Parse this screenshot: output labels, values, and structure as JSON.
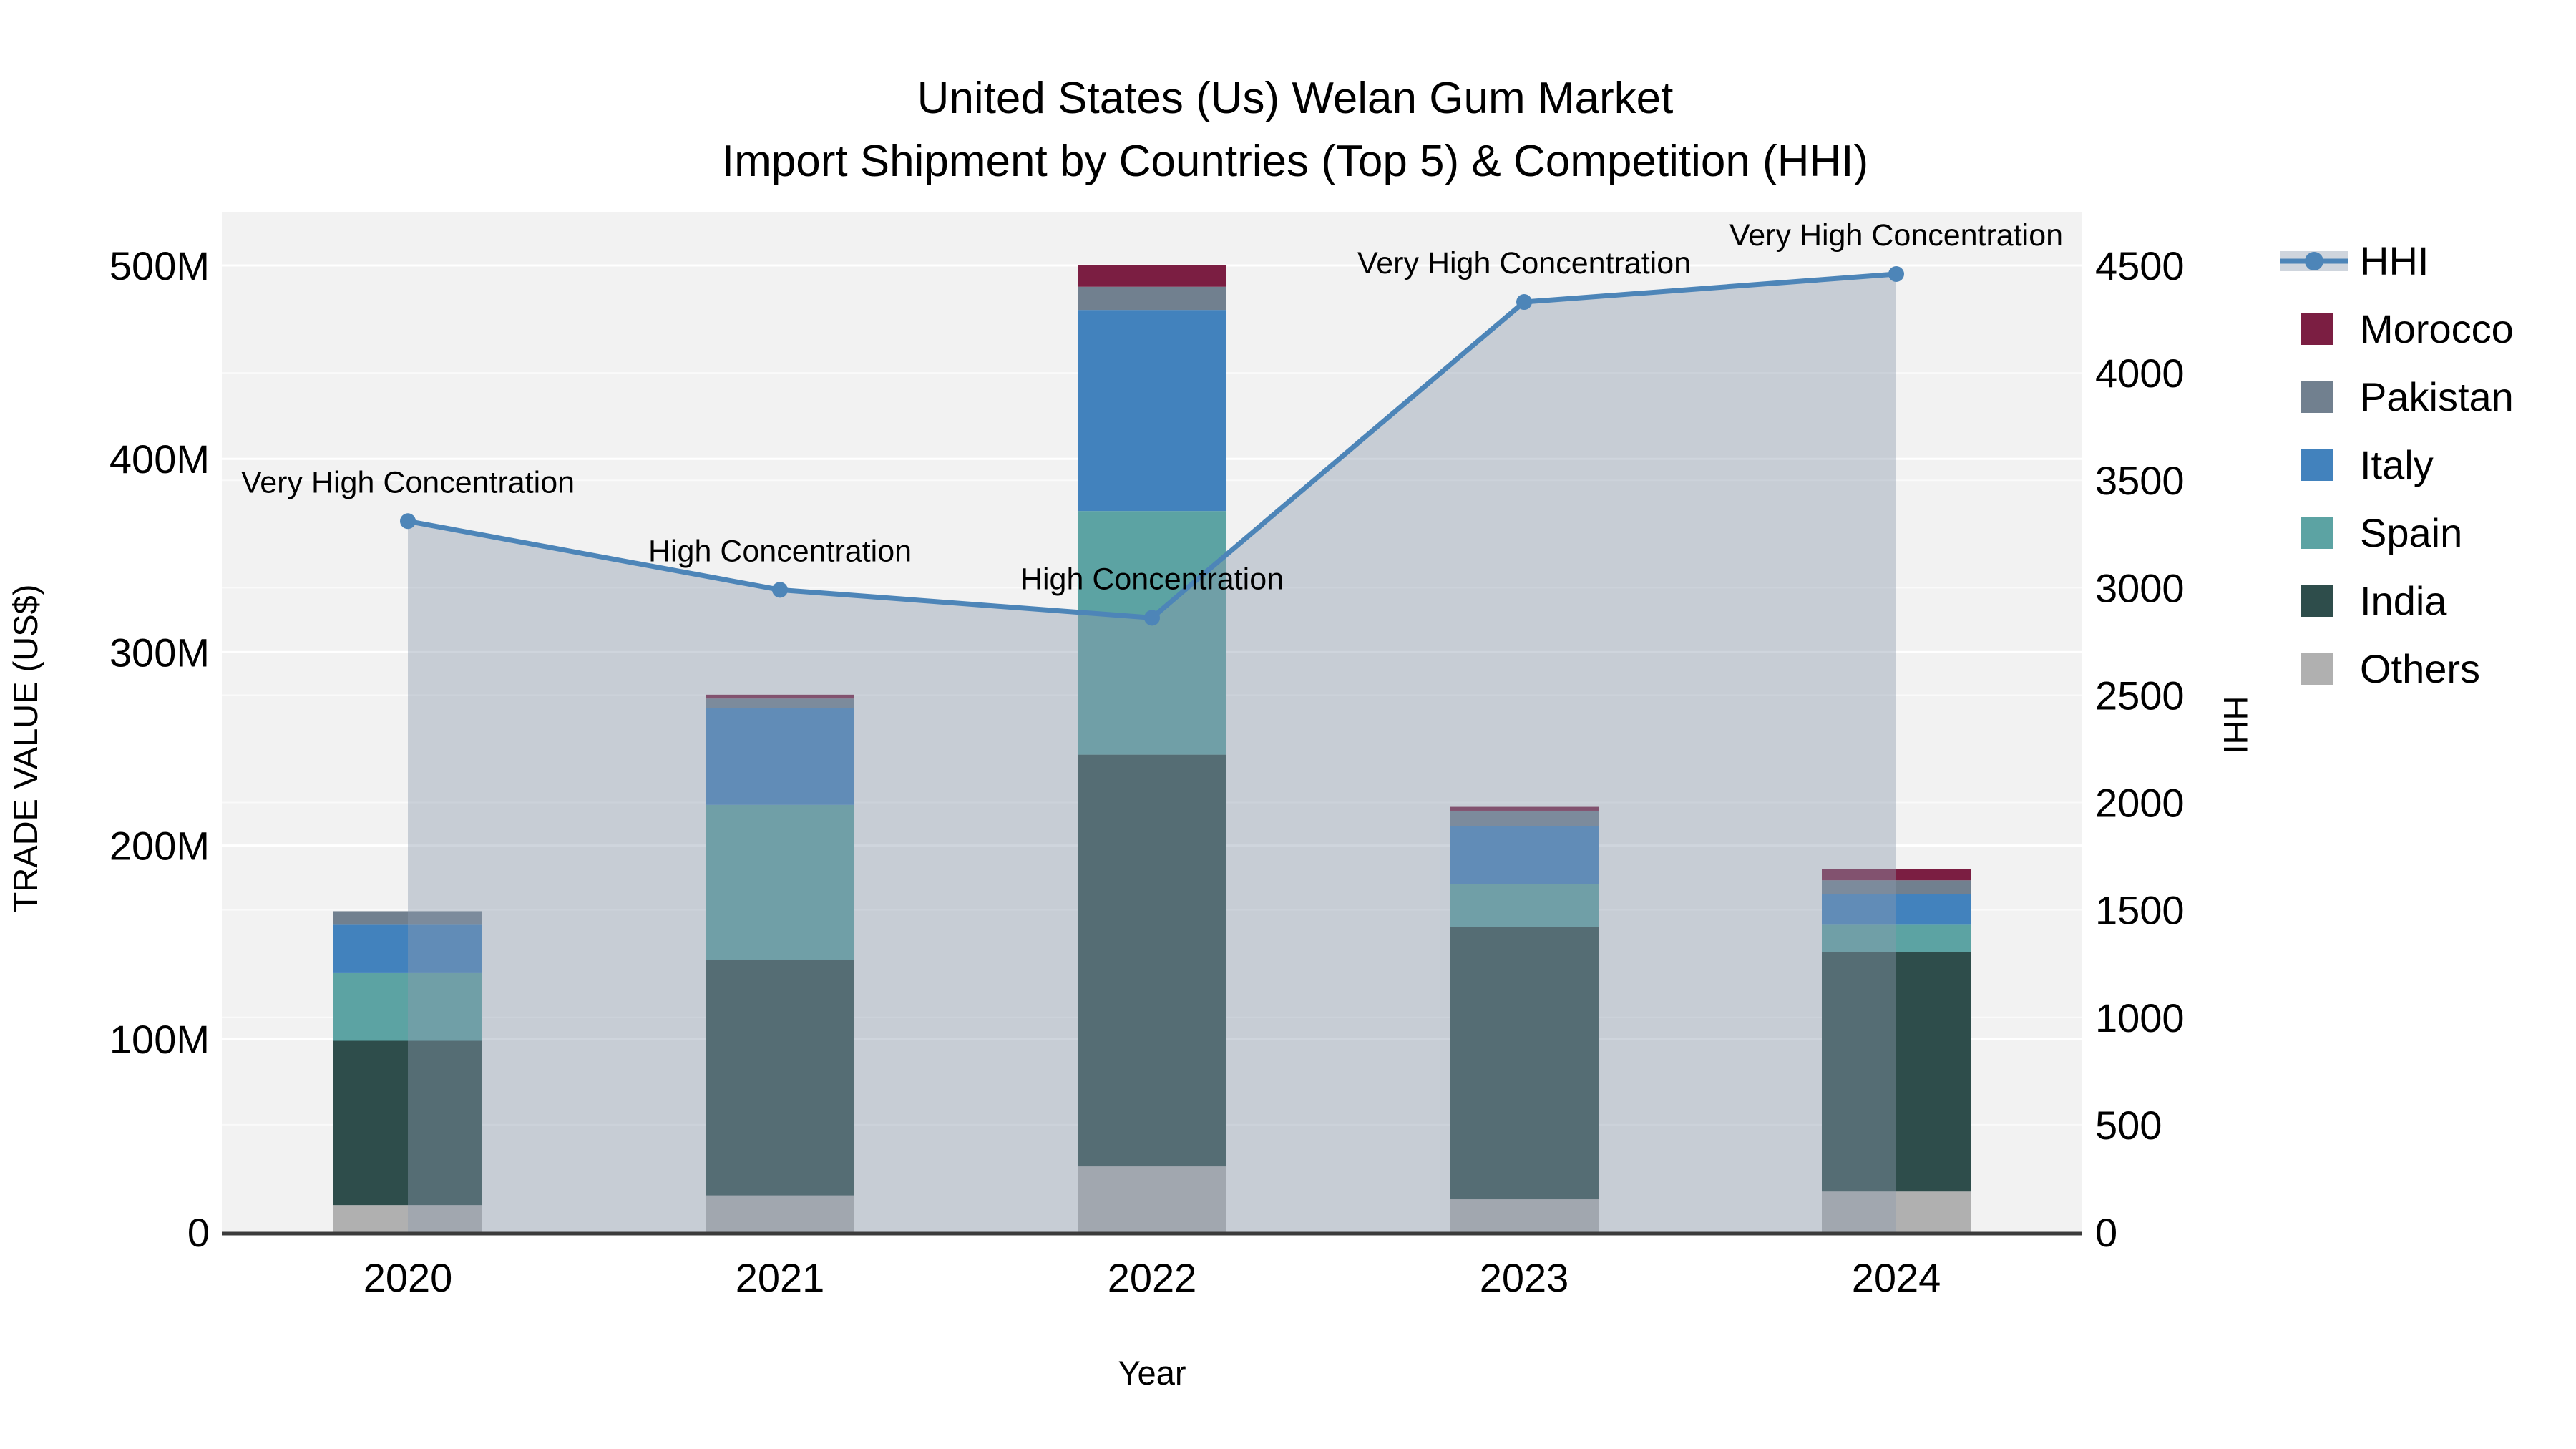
{
  "title": {
    "line1": "United States (Us) Welan Gum Market",
    "line2": "Import Shipment by Countries (Top 5) & Competition (HHI)"
  },
  "axes": {
    "y_left_title": "TRADE VALUE (US$)",
    "y_right_title": "HHI",
    "x_title": "Year"
  },
  "colors": {
    "Morocco": "#7b1e42",
    "Pakistan": "#71808f",
    "Italy": "#4282bd",
    "Spain": "#5ca3a3",
    "India": "#2e4d4b",
    "Others": "#b0b0b0",
    "hhi_line": "#4d85b8",
    "hhi_area": "rgba(140,155,175,0.42)",
    "plot_bg": "#f2f2f2",
    "grid_major": "#ffffff",
    "grid_minor": "#fafafa",
    "axis_line": "#3b3b3b"
  },
  "legend": [
    {
      "label": "HHI",
      "type": "line"
    },
    {
      "label": "Morocco",
      "type": "swatch",
      "color_key": "Morocco"
    },
    {
      "label": "Pakistan",
      "type": "swatch",
      "color_key": "Pakistan"
    },
    {
      "label": "Italy",
      "type": "swatch",
      "color_key": "Italy"
    },
    {
      "label": "Spain",
      "type": "swatch",
      "color_key": "Spain"
    },
    {
      "label": "India",
      "type": "swatch",
      "color_key": "India"
    },
    {
      "label": "Others",
      "type": "swatch",
      "color_key": "Others"
    }
  ],
  "chart_data": {
    "type": "bar+line",
    "categories": [
      "2020",
      "2021",
      "2022",
      "2023",
      "2024"
    ],
    "bar_unit": "M US$",
    "stack_series": [
      {
        "name": "Others",
        "values": [
          14,
          19,
          34,
          17,
          21
        ]
      },
      {
        "name": "India",
        "values": [
          85,
          122,
          213,
          141,
          124
        ]
      },
      {
        "name": "Spain",
        "values": [
          35,
          80,
          126,
          22,
          14
        ]
      },
      {
        "name": "Italy",
        "values": [
          25,
          50,
          104,
          30,
          16
        ]
      },
      {
        "name": "Pakistan",
        "values": [
          7,
          5,
          12,
          8,
          7
        ]
      },
      {
        "name": "Morocco",
        "values": [
          0,
          2,
          11,
          2,
          6
        ]
      }
    ],
    "bar_totals": [
      166,
      278,
      500,
      220,
      188
    ],
    "line_series": {
      "name": "HHI",
      "axis": "right",
      "values": [
        3310,
        2990,
        2860,
        4330,
        4460
      ]
    },
    "annotations": [
      "Very High Concentration",
      "High Concentration",
      "High Concentration",
      "Very High Concentration",
      "Very High Concentration"
    ],
    "y_left": {
      "max": 500,
      "tick_values": [
        0,
        100,
        200,
        300,
        400,
        500
      ],
      "tick_labels": [
        "0",
        "100M",
        "200M",
        "300M",
        "400M",
        "500M"
      ]
    },
    "y_right": {
      "max": 4500,
      "tick_values": [
        0,
        500,
        1000,
        1500,
        2000,
        2500,
        3000,
        3500,
        4000,
        4500
      ],
      "tick_labels": [
        "0",
        "500",
        "1000",
        "1500",
        "2000",
        "2500",
        "3000",
        "3500",
        "4000",
        "4500"
      ]
    },
    "legend_position": "right",
    "grid": true
  }
}
